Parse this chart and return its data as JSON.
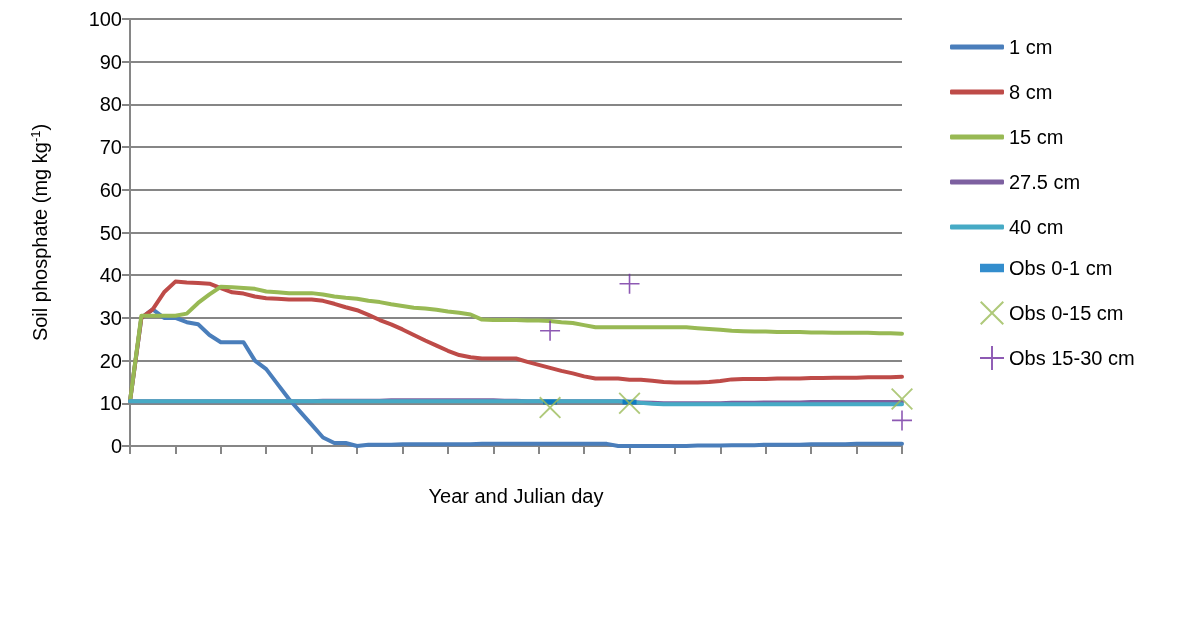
{
  "chart_data": {
    "type": "line",
    "xlabel": "Year and Julian day",
    "ylabel": "Soil phosphate (mg kg$^{-1}$)",
    "categories": [
      null,
      null,
      null,
      null,
      null,
      null,
      null,
      null,
      null,
      null,
      null,
      null,
      null,
      null,
      null,
      null,
      null,
      null,
      null,
      null,
      null,
      null,
      null,
      null,
      null,
      null,
      null,
      null,
      null,
      null,
      null,
      null,
      null,
      null,
      null,
      null,
      null,
      null,
      null,
      null,
      null,
      null,
      null,
      null,
      null,
      null,
      null,
      null,
      null,
      null,
      null,
      null,
      null,
      null,
      null,
      null,
      null,
      null,
      null,
      null,
      null,
      null,
      null,
      null,
      null,
      null,
      null,
      null,
      null
    ],
    "ylim": [
      0,
      100
    ],
    "yticks": [
      0,
      10,
      20,
      30,
      40,
      50,
      60,
      70,
      80,
      90,
      100
    ],
    "grid": "y",
    "legend": "right",
    "tick_labels": "y",
    "series": [
      {
        "name": "1 cm",
        "color": "#4a7ebb",
        "values": [
          10.5,
          30,
          32,
          30,
          30,
          29,
          28.5,
          26,
          24.3,
          24.3,
          24.3,
          20,
          18,
          14.5,
          11,
          8,
          5,
          2,
          0.7,
          0.7,
          0,
          0.3,
          0.3,
          0.3,
          0.4,
          0.4,
          0.4,
          0.4,
          0.4,
          0.4,
          0.4,
          0.5,
          0.5,
          0.5,
          0.5,
          0.5,
          0.5,
          0.5,
          0.5,
          0.5,
          0.5,
          0.5,
          0.5,
          0,
          0,
          0,
          0,
          0,
          0,
          0,
          0.1,
          0.1,
          0.1,
          0.2,
          0.2,
          0.2,
          0.3,
          0.3,
          0.3,
          0.3,
          0.4,
          0.4,
          0.4,
          0.4,
          0.5,
          0.5,
          0.5,
          0.5,
          0.5
        ]
      },
      {
        "name": "8 cm",
        "color": "#be4b48",
        "values": [
          10.5,
          30,
          32,
          36,
          38.5,
          38.3,
          38.2,
          38,
          37,
          36,
          35.7,
          35,
          34.6,
          34.5,
          34.3,
          34.3,
          34.3,
          34,
          33.3,
          32.5,
          31.8,
          30.7,
          29.5,
          28.5,
          27.3,
          26,
          24.7,
          23.5,
          22.3,
          21.3,
          20.8,
          20.5,
          20.5,
          20.5,
          20.5,
          19.7,
          19,
          18.3,
          17.6,
          17,
          16.3,
          15.8,
          15.8,
          15.8,
          15.5,
          15.5,
          15.3,
          15,
          14.9,
          14.9,
          14.9,
          15,
          15.2,
          15.6,
          15.7,
          15.7,
          15.7,
          15.8,
          15.8,
          15.8,
          15.9,
          15.9,
          16,
          16,
          16,
          16.1,
          16.1,
          16.1,
          16.2
        ]
      },
      {
        "name": "15 cm",
        "color": "#98b954",
        "values": [
          10.5,
          30.5,
          30.5,
          30.5,
          30.5,
          31,
          33.5,
          35.5,
          37.3,
          37.2,
          37,
          36.8,
          36.2,
          36,
          35.8,
          35.8,
          35.8,
          35.5,
          35,
          34.7,
          34.5,
          34,
          33.7,
          33.2,
          32.8,
          32.4,
          32.2,
          31.9,
          31.5,
          31.2,
          30.8,
          29.6,
          29.5,
          29.5,
          29.5,
          29.4,
          29.4,
          29.3,
          29,
          28.8,
          28.3,
          27.8,
          27.8,
          27.8,
          27.8,
          27.8,
          27.8,
          27.8,
          27.8,
          27.8,
          27.6,
          27.4,
          27.2,
          27,
          26.9,
          26.8,
          26.8,
          26.7,
          26.7,
          26.7,
          26.6,
          26.6,
          26.5,
          26.5,
          26.5,
          26.5,
          26.4,
          26.4,
          26.3
        ]
      },
      {
        "name": "27.5 cm",
        "color": "#7d60a0",
        "values": [
          10.5,
          10.5,
          10.5,
          10.5,
          10.5,
          10.5,
          10.5,
          10.5,
          10.5,
          10.5,
          10.5,
          10.5,
          10.5,
          10.5,
          10.5,
          10.5,
          10.5,
          10.6,
          10.6,
          10.6,
          10.6,
          10.6,
          10.6,
          10.7,
          10.7,
          10.7,
          10.7,
          10.7,
          10.7,
          10.7,
          10.7,
          10.7,
          10.7,
          10.6,
          10.6,
          10.5,
          10.5,
          10.5,
          10.5,
          10.5,
          10.5,
          10.5,
          10.5,
          10.5,
          10.3,
          10.2,
          10.1,
          10,
          10,
          10,
          10,
          10,
          10,
          10.1,
          10.1,
          10.1,
          10.2,
          10.2,
          10.2,
          10.2,
          10.3,
          10.3,
          10.3,
          10.3,
          10.3,
          10.3,
          10.3,
          10.3,
          10.3
        ]
      },
      {
        "name": "40 cm",
        "color": "#46aac5",
        "values": [
          10.5,
          10.5,
          10.5,
          10.5,
          10.5,
          10.5,
          10.5,
          10.5,
          10.5,
          10.5,
          10.5,
          10.5,
          10.5,
          10.5,
          10.5,
          10.5,
          10.5,
          10.5,
          10.5,
          10.5,
          10.5,
          10.5,
          10.5,
          10.5,
          10.5,
          10.5,
          10.5,
          10.5,
          10.5,
          10.5,
          10.5,
          10.5,
          10.5,
          10.5,
          10.5,
          10.5,
          10.5,
          10.5,
          10.5,
          10.5,
          10.5,
          10.5,
          10.5,
          10.5,
          10.3,
          10.1,
          9.9,
          9.8,
          9.8,
          9.8,
          9.8,
          9.8,
          9.8,
          9.8,
          9.8,
          9.8,
          9.8,
          9.8,
          9.8,
          9.8,
          9.8,
          9.8,
          9.8,
          9.8,
          9.8,
          9.8,
          9.8,
          9.8,
          9.8
        ]
      },
      {
        "name": "Obs 0-1 cm",
        "type": "scatter",
        "marker": "square",
        "color": "#0070c0",
        "values": [
          null,
          null,
          null,
          null,
          null,
          null,
          null,
          null,
          null,
          null,
          null,
          null,
          null,
          null,
          null,
          null,
          null,
          null,
          null,
          null,
          null,
          null,
          null,
          null,
          null,
          null,
          null,
          null,
          null,
          null,
          null,
          null,
          null,
          null,
          null,
          null,
          null,
          10.3,
          null,
          null,
          null,
          null,
          null,
          null,
          10.3,
          null,
          null,
          null,
          null,
          null,
          null,
          null,
          null,
          null,
          null,
          null,
          null,
          null,
          null,
          null,
          null,
          null,
          null,
          null,
          null,
          null,
          null,
          null,
          null
        ]
      },
      {
        "name": "Obs 0-15 cm",
        "type": "scatter",
        "marker": "x",
        "color": "#9bbb59",
        "values": [
          null,
          null,
          null,
          null,
          null,
          null,
          null,
          null,
          null,
          null,
          null,
          null,
          null,
          null,
          null,
          null,
          null,
          null,
          null,
          null,
          null,
          null,
          null,
          null,
          null,
          null,
          null,
          null,
          null,
          null,
          null,
          null,
          null,
          null,
          null,
          null,
          null,
          9,
          null,
          null,
          null,
          null,
          null,
          null,
          10,
          null,
          null,
          null,
          null,
          null,
          null,
          null,
          null,
          null,
          null,
          null,
          null,
          null,
          null,
          null,
          null,
          null,
          null,
          null,
          null,
          null,
          null,
          null,
          11
        ]
      },
      {
        "name": "Obs 15-30 cm",
        "type": "scatter",
        "marker": "cross",
        "color": "#7030a0",
        "values": [
          null,
          null,
          null,
          null,
          null,
          null,
          null,
          null,
          null,
          null,
          null,
          null,
          null,
          null,
          null,
          null,
          null,
          null,
          null,
          null,
          null,
          null,
          null,
          null,
          null,
          null,
          null,
          null,
          null,
          null,
          null,
          null,
          null,
          null,
          null,
          null,
          null,
          27,
          null,
          null,
          null,
          null,
          null,
          null,
          38,
          null,
          null,
          null,
          null,
          null,
          null,
          null,
          null,
          null,
          null,
          null,
          null,
          null,
          null,
          null,
          null,
          null,
          null,
          null,
          null,
          null,
          null,
          null,
          6
        ]
      }
    ]
  }
}
